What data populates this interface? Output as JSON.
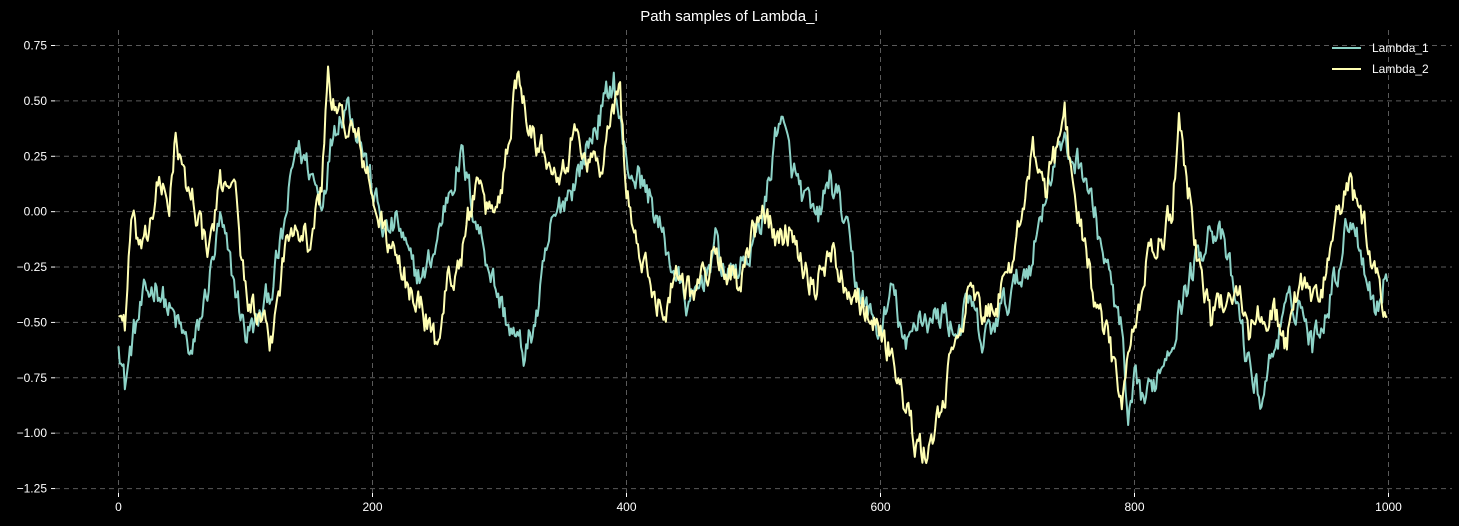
{
  "chart_data": {
    "type": "line",
    "title": "Path samples of Lambda_i",
    "xlabel": "",
    "ylabel": "",
    "xlim": [
      -50,
      1050
    ],
    "ylim": [
      -1.27,
      0.82
    ],
    "xticks": [
      0,
      200,
      400,
      600,
      800,
      1000
    ],
    "xtick_labels": [
      "0",
      "200",
      "400",
      "600",
      "800",
      "1000"
    ],
    "yticks": [
      -1.25,
      -1.0,
      -0.75,
      -0.5,
      -0.25,
      0.0,
      0.25,
      0.5,
      0.75
    ],
    "ytick_labels": [
      "−1.25",
      "−1.00",
      "−0.75",
      "−0.50",
      "−0.25",
      "0.00",
      "0.25",
      "0.50",
      "0.75"
    ],
    "grid": true,
    "legend": "top-right",
    "n_points": 1000,
    "series": [
      {
        "name": "Lambda_1",
        "color": "#8dd3c7",
        "keypoints": [
          [
            0,
            -0.55
          ],
          [
            5,
            -0.78
          ],
          [
            12,
            -0.55
          ],
          [
            20,
            -0.4
          ],
          [
            30,
            -0.32
          ],
          [
            40,
            -0.45
          ],
          [
            50,
            -0.55
          ],
          [
            58,
            -0.65
          ],
          [
            70,
            -0.35
          ],
          [
            80,
            -0.05
          ],
          [
            90,
            -0.3
          ],
          [
            100,
            -0.55
          ],
          [
            110,
            -0.5
          ],
          [
            120,
            -0.35
          ],
          [
            130,
            -0.1
          ],
          [
            140,
            0.3
          ],
          [
            150,
            0.2
          ],
          [
            160,
            0.05
          ],
          [
            170,
            0.4
          ],
          [
            180,
            0.5
          ],
          [
            190,
            0.35
          ],
          [
            200,
            0.1
          ],
          [
            210,
            -0.1
          ],
          [
            220,
            -0.05
          ],
          [
            230,
            -0.25
          ],
          [
            240,
            -0.3
          ],
          [
            250,
            -0.15
          ],
          [
            260,
            0.1
          ],
          [
            270,
            0.25
          ],
          [
            280,
            0.0
          ],
          [
            290,
            -0.2
          ],
          [
            300,
            -0.4
          ],
          [
            310,
            -0.55
          ],
          [
            320,
            -0.65
          ],
          [
            330,
            -0.45
          ],
          [
            340,
            -0.1
          ],
          [
            350,
            0.05
          ],
          [
            360,
            0.15
          ],
          [
            370,
            0.3
          ],
          [
            380,
            0.45
          ],
          [
            390,
            0.6
          ],
          [
            400,
            0.2
          ],
          [
            410,
            0.15
          ],
          [
            420,
            0.05
          ],
          [
            430,
            -0.15
          ],
          [
            440,
            -0.3
          ],
          [
            450,
            -0.45
          ],
          [
            460,
            -0.3
          ],
          [
            470,
            -0.15
          ],
          [
            480,
            -0.3
          ],
          [
            490,
            -0.25
          ],
          [
            500,
            -0.15
          ],
          [
            510,
            0.05
          ],
          [
            520,
            0.45
          ],
          [
            530,
            0.2
          ],
          [
            540,
            0.05
          ],
          [
            550,
            -0.05
          ],
          [
            560,
            0.15
          ],
          [
            570,
            0.0
          ],
          [
            580,
            -0.3
          ],
          [
            590,
            -0.45
          ],
          [
            600,
            -0.55
          ],
          [
            610,
            -0.35
          ],
          [
            620,
            -0.65
          ],
          [
            630,
            -0.45
          ],
          [
            640,
            -0.5
          ],
          [
            650,
            -0.45
          ],
          [
            660,
            -0.55
          ],
          [
            670,
            -0.4
          ],
          [
            680,
            -0.6
          ],
          [
            690,
            -0.5
          ],
          [
            700,
            -0.4
          ],
          [
            710,
            -0.3
          ],
          [
            720,
            -0.2
          ],
          [
            730,
            0.1
          ],
          [
            740,
            0.3
          ],
          [
            750,
            0.25
          ],
          [
            760,
            0.2
          ],
          [
            770,
            -0.05
          ],
          [
            780,
            -0.3
          ],
          [
            790,
            -0.55
          ],
          [
            795,
            -1.0
          ],
          [
            800,
            -0.8
          ],
          [
            810,
            -0.85
          ],
          [
            820,
            -0.7
          ],
          [
            830,
            -0.55
          ],
          [
            840,
            -0.35
          ],
          [
            850,
            -0.2
          ],
          [
            860,
            -0.05
          ],
          [
            870,
            -0.15
          ],
          [
            880,
            -0.4
          ],
          [
            890,
            -0.7
          ],
          [
            900,
            -0.85
          ],
          [
            910,
            -0.6
          ],
          [
            920,
            -0.45
          ],
          [
            930,
            -0.4
          ],
          [
            940,
            -0.6
          ],
          [
            950,
            -0.45
          ],
          [
            960,
            -0.25
          ],
          [
            970,
            0.0
          ],
          [
            980,
            -0.2
          ],
          [
            990,
            -0.45
          ],
          [
            1000,
            -0.25
          ]
        ]
      },
      {
        "name": "Lambda_2",
        "color": "#ffffb3",
        "keypoints": [
          [
            0,
            -0.45
          ],
          [
            5,
            -0.5
          ],
          [
            10,
            -0.05
          ],
          [
            20,
            -0.2
          ],
          [
            30,
            0.1
          ],
          [
            40,
            0.05
          ],
          [
            45,
            0.35
          ],
          [
            50,
            0.15
          ],
          [
            60,
            0.05
          ],
          [
            70,
            -0.2
          ],
          [
            80,
            0.1
          ],
          [
            90,
            0.2
          ],
          [
            95,
            -0.1
          ],
          [
            100,
            -0.35
          ],
          [
            110,
            -0.5
          ],
          [
            120,
            -0.6
          ],
          [
            130,
            -0.2
          ],
          [
            140,
            0.0
          ],
          [
            150,
            -0.15
          ],
          [
            160,
            0.1
          ],
          [
            165,
            0.65
          ],
          [
            170,
            0.45
          ],
          [
            180,
            0.4
          ],
          [
            190,
            0.3
          ],
          [
            200,
            0.05
          ],
          [
            210,
            -0.1
          ],
          [
            220,
            -0.25
          ],
          [
            230,
            -0.35
          ],
          [
            240,
            -0.45
          ],
          [
            250,
            -0.6
          ],
          [
            260,
            -0.3
          ],
          [
            270,
            -0.2
          ],
          [
            280,
            0.1
          ],
          [
            290,
            0.0
          ],
          [
            300,
            0.05
          ],
          [
            310,
            0.45
          ],
          [
            315,
            0.65
          ],
          [
            320,
            0.5
          ],
          [
            330,
            0.3
          ],
          [
            340,
            0.25
          ],
          [
            350,
            0.2
          ],
          [
            360,
            0.35
          ],
          [
            370,
            0.25
          ],
          [
            380,
            0.2
          ],
          [
            390,
            0.45
          ],
          [
            395,
            0.55
          ],
          [
            400,
            0.1
          ],
          [
            410,
            -0.2
          ],
          [
            420,
            -0.35
          ],
          [
            430,
            -0.45
          ],
          [
            440,
            -0.25
          ],
          [
            450,
            -0.35
          ],
          [
            460,
            -0.3
          ],
          [
            470,
            -0.2
          ],
          [
            480,
            -0.25
          ],
          [
            490,
            -0.35
          ],
          [
            500,
            -0.1
          ],
          [
            510,
            0.0
          ],
          [
            520,
            -0.15
          ],
          [
            530,
            -0.05
          ],
          [
            540,
            -0.25
          ],
          [
            550,
            -0.35
          ],
          [
            560,
            -0.15
          ],
          [
            570,
            -0.3
          ],
          [
            580,
            -0.35
          ],
          [
            590,
            -0.45
          ],
          [
            600,
            -0.55
          ],
          [
            610,
            -0.65
          ],
          [
            620,
            -0.9
          ],
          [
            630,
            -1.1
          ],
          [
            640,
            -1.05
          ],
          [
            650,
            -0.85
          ],
          [
            660,
            -0.55
          ],
          [
            670,
            -0.35
          ],
          [
            680,
            -0.5
          ],
          [
            690,
            -0.4
          ],
          [
            700,
            -0.35
          ],
          [
            710,
            0.0
          ],
          [
            720,
            0.25
          ],
          [
            730,
            0.1
          ],
          [
            740,
            0.3
          ],
          [
            745,
            0.5
          ],
          [
            750,
            0.15
          ],
          [
            760,
            -0.1
          ],
          [
            770,
            -0.45
          ],
          [
            780,
            -0.6
          ],
          [
            790,
            -0.85
          ],
          [
            800,
            -0.55
          ],
          [
            810,
            -0.2
          ],
          [
            820,
            -0.15
          ],
          [
            830,
            0.0
          ],
          [
            835,
            0.45
          ],
          [
            840,
            0.2
          ],
          [
            850,
            -0.2
          ],
          [
            860,
            -0.5
          ],
          [
            870,
            -0.4
          ],
          [
            880,
            -0.3
          ],
          [
            890,
            -0.55
          ],
          [
            900,
            -0.45
          ],
          [
            910,
            -0.45
          ],
          [
            920,
            -0.6
          ],
          [
            930,
            -0.3
          ],
          [
            940,
            -0.4
          ],
          [
            950,
            -0.3
          ],
          [
            960,
            0.0
          ],
          [
            970,
            0.1
          ],
          [
            980,
            -0.05
          ],
          [
            990,
            -0.3
          ],
          [
            1000,
            -0.45
          ]
        ]
      }
    ]
  }
}
